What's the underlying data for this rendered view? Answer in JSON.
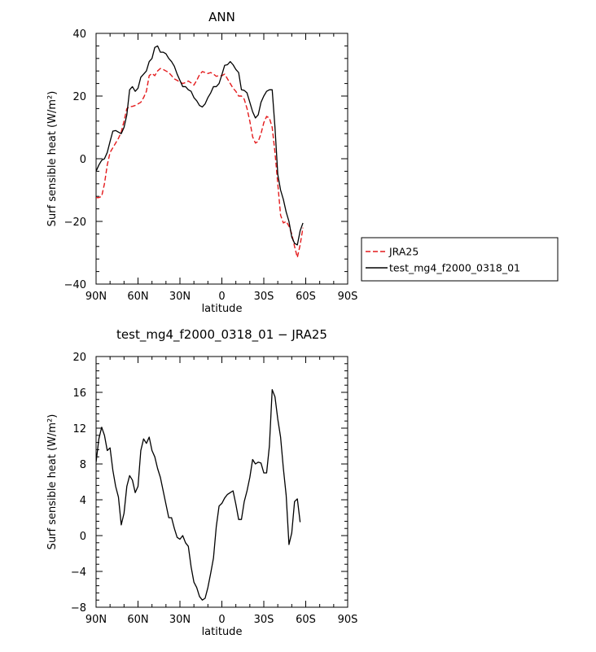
{
  "chart_data": [
    {
      "type": "line",
      "title": "ANN",
      "xlabel": "latitude",
      "ylabel": "Surf sensible heat (W/m²)",
      "xlim": [
        90,
        -90
      ],
      "ylim": [
        -40,
        40
      ],
      "xticks": [
        90,
        60,
        30,
        0,
        -30,
        -60,
        -90
      ],
      "xtick_labels": [
        "90N",
        "60N",
        "30N",
        "0",
        "30S",
        "60S",
        "90S"
      ],
      "yticks": [
        -40,
        -20,
        0,
        20,
        40
      ],
      "ytick_labels": [
        "−40",
        "−20",
        "0",
        "20",
        "40"
      ],
      "grid": false,
      "legend_position": "right, outside plot",
      "series": [
        {
          "name": "JRA25",
          "color": "#e41a1c",
          "dash": "dashed",
          "points": [
            [
              90,
              -12.4
            ],
            [
              88,
              -12.4
            ],
            [
              86,
              -12
            ],
            [
              84,
              -8
            ],
            [
              82,
              -2
            ],
            [
              80,
              2
            ],
            [
              78,
              3.5
            ],
            [
              76,
              5
            ],
            [
              74,
              6.5
            ],
            [
              72,
              8.5
            ],
            [
              70,
              12
            ],
            [
              68,
              16
            ],
            [
              66,
              16.6
            ],
            [
              64,
              16.7
            ],
            [
              62,
              17
            ],
            [
              60,
              17.5
            ],
            [
              58,
              18
            ],
            [
              56,
              19.5
            ],
            [
              54,
              21.5
            ],
            [
              52,
              26.5
            ],
            [
              50,
              27.2
            ],
            [
              48,
              26.5
            ],
            [
              46,
              28
            ],
            [
              44,
              28.8
            ],
            [
              42,
              28.5
            ],
            [
              40,
              28
            ],
            [
              38,
              27.5
            ],
            [
              36,
              26.5
            ],
            [
              34,
              25.5
            ],
            [
              32,
              25
            ],
            [
              30,
              24.5
            ],
            [
              28,
              24
            ],
            [
              26,
              24.3
            ],
            [
              24,
              24.8
            ],
            [
              22,
              24.2
            ],
            [
              20,
              23.5
            ],
            [
              18,
              25
            ],
            [
              16,
              26.8
            ],
            [
              14,
              27.8
            ],
            [
              12,
              27.5
            ],
            [
              10,
              27.2
            ],
            [
              8,
              27.5
            ],
            [
              6,
              27
            ],
            [
              4,
              26.3
            ],
            [
              2,
              26.5
            ],
            [
              0,
              26.5
            ],
            [
              -2,
              27
            ],
            [
              -4,
              25.5
            ],
            [
              -6,
              24
            ],
            [
              -8,
              22.5
            ],
            [
              -10,
              21.5
            ],
            [
              -12,
              20
            ],
            [
              -14,
              20
            ],
            [
              -16,
              19
            ],
            [
              -18,
              16
            ],
            [
              -20,
              12
            ],
            [
              -22,
              7
            ],
            [
              -24,
              5
            ],
            [
              -26,
              5.5
            ],
            [
              -28,
              8
            ],
            [
              -30,
              11.5
            ],
            [
              -32,
              13.5
            ],
            [
              -34,
              13
            ],
            [
              -36,
              10
            ],
            [
              -38,
              2
            ],
            [
              -40,
              -8
            ],
            [
              -42,
              -18
            ],
            [
              -44,
              -20.5
            ],
            [
              -46,
              -20
            ],
            [
              -48,
              -21.5
            ],
            [
              -50,
              -24
            ],
            [
              -52,
              -28
            ],
            [
              -54,
              -31.5
            ],
            [
              -56,
              -27.5
            ],
            [
              -58,
              -22
            ]
          ]
        },
        {
          "name": "test_mg4_f2000_0318_01",
          "color": "#000000",
          "dash": "solid",
          "points": [
            [
              90,
              -4
            ],
            [
              88,
              -2
            ],
            [
              86,
              -0.5
            ],
            [
              84,
              0
            ],
            [
              82,
              2
            ],
            [
              80,
              5.5
            ],
            [
              78,
              8.8
            ],
            [
              76,
              9
            ],
            [
              74,
              8.5
            ],
            [
              72,
              8
            ],
            [
              70,
              10
            ],
            [
              68,
              14
            ],
            [
              66,
              22
            ],
            [
              64,
              23
            ],
            [
              62,
              21.5
            ],
            [
              60,
              22.5
            ],
            [
              58,
              26
            ],
            [
              56,
              27
            ],
            [
              54,
              28
            ],
            [
              52,
              31
            ],
            [
              50,
              32
            ],
            [
              48,
              35.5
            ],
            [
              46,
              36
            ],
            [
              44,
              34
            ],
            [
              42,
              34
            ],
            [
              40,
              33.5
            ],
            [
              38,
              32
            ],
            [
              36,
              31
            ],
            [
              34,
              29.5
            ],
            [
              32,
              27
            ],
            [
              30,
              25
            ],
            [
              28,
              23
            ],
            [
              26,
              23
            ],
            [
              24,
              22
            ],
            [
              22,
              21.5
            ],
            [
              20,
              19.5
            ],
            [
              18,
              18.5
            ],
            [
              16,
              17
            ],
            [
              14,
              16.5
            ],
            [
              12,
              17.5
            ],
            [
              10,
              19.5
            ],
            [
              8,
              21
            ],
            [
              6,
              23
            ],
            [
              4,
              23
            ],
            [
              2,
              24
            ],
            [
              0,
              26.8
            ],
            [
              -2,
              29.8
            ],
            [
              -4,
              30
            ],
            [
              -6,
              31
            ],
            [
              -8,
              30
            ],
            [
              -10,
              28.5
            ],
            [
              -12,
              27.5
            ],
            [
              -14,
              22
            ],
            [
              -16,
              21.8
            ],
            [
              -18,
              21
            ],
            [
              -20,
              18
            ],
            [
              -22,
              15
            ],
            [
              -24,
              13
            ],
            [
              -26,
              14
            ],
            [
              -28,
              18
            ],
            [
              -30,
              20
            ],
            [
              -32,
              21.5
            ],
            [
              -34,
              22
            ],
            [
              -36,
              22
            ],
            [
              -38,
              10
            ],
            [
              -40,
              -5
            ],
            [
              -42,
              -10
            ],
            [
              -44,
              -13
            ],
            [
              -46,
              -17
            ],
            [
              -48,
              -20
            ],
            [
              -50,
              -25
            ],
            [
              -52,
              -27
            ],
            [
              -54,
              -27.5
            ],
            [
              -56,
              -23
            ],
            [
              -58,
              -20.5
            ]
          ]
        }
      ]
    },
    {
      "type": "line",
      "title": "test_mg4_f2000_0318_01 − JRA25",
      "xlabel": "latitude",
      "ylabel": "Surf sensible heat (W/m²)",
      "xlim": [
        90,
        -90
      ],
      "ylim": [
        -8,
        20
      ],
      "xticks": [
        90,
        60,
        30,
        0,
        -30,
        -60,
        -90
      ],
      "xtick_labels": [
        "90N",
        "60N",
        "30N",
        "0",
        "30S",
        "60S",
        "90S"
      ],
      "yticks": [
        -8,
        -4,
        0,
        4,
        8,
        12,
        16,
        20
      ],
      "ytick_labels": [
        "−8",
        "−4",
        "0",
        "4",
        "8",
        "12",
        "16",
        "20"
      ],
      "grid": false,
      "series": [
        {
          "color": "#000000",
          "dash": "solid",
          "points": [
            [
              90,
              8.2
            ],
            [
              88,
              10.8
            ],
            [
              86,
              12.1
            ],
            [
              84,
              11.2
            ],
            [
              82,
              9.5
            ],
            [
              80,
              9.8
            ],
            [
              78,
              7.3
            ],
            [
              76,
              5.5
            ],
            [
              74,
              4.3
            ],
            [
              72,
              1.2
            ],
            [
              70,
              2.5
            ],
            [
              68,
              5.5
            ],
            [
              66,
              6.7
            ],
            [
              64,
              6.2
            ],
            [
              62,
              4.8
            ],
            [
              60,
              5.5
            ],
            [
              58,
              9.5
            ],
            [
              56,
              10.8
            ],
            [
              54,
              10.3
            ],
            [
              52,
              11
            ],
            [
              50,
              9.5
            ],
            [
              48,
              8.8
            ],
            [
              46,
              7.5
            ],
            [
              44,
              6.5
            ],
            [
              42,
              5
            ],
            [
              40,
              3.5
            ],
            [
              38,
              2
            ],
            [
              36,
              2
            ],
            [
              34,
              0.8
            ],
            [
              32,
              -0.2
            ],
            [
              30,
              -0.4
            ],
            [
              28,
              0
            ],
            [
              26,
              -0.8
            ],
            [
              24,
              -1.2
            ],
            [
              22,
              -3.5
            ],
            [
              20,
              -5.2
            ],
            [
              18,
              -5.8
            ],
            [
              16,
              -6.8
            ],
            [
              14,
              -7.2
            ],
            [
              12,
              -7
            ],
            [
              10,
              -5.8
            ],
            [
              8,
              -4.2
            ],
            [
              6,
              -2.5
            ],
            [
              4,
              1
            ],
            [
              2,
              3.3
            ],
            [
              0,
              3.6
            ],
            [
              -2,
              4.2
            ],
            [
              -4,
              4.6
            ],
            [
              -6,
              4.8
            ],
            [
              -8,
              5
            ],
            [
              -10,
              3.5
            ],
            [
              -12,
              1.8
            ],
            [
              -14,
              1.8
            ],
            [
              -16,
              3.8
            ],
            [
              -18,
              5
            ],
            [
              -20,
              6.5
            ],
            [
              -22,
              8.5
            ],
            [
              -24,
              8
            ],
            [
              -26,
              8.2
            ],
            [
              -28,
              8.1
            ],
            [
              -30,
              7
            ],
            [
              -32,
              7
            ],
            [
              -34,
              10
            ],
            [
              -36,
              16.3
            ],
            [
              -38,
              15.5
            ],
            [
              -40,
              13
            ],
            [
              -42,
              11
            ],
            [
              -44,
              7.5
            ],
            [
              -46,
              4.5
            ],
            [
              -48,
              -1
            ],
            [
              -50,
              0.3
            ],
            [
              -52,
              3.8
            ],
            [
              -54,
              4.1
            ],
            [
              -56,
              1.5
            ]
          ]
        }
      ]
    }
  ]
}
